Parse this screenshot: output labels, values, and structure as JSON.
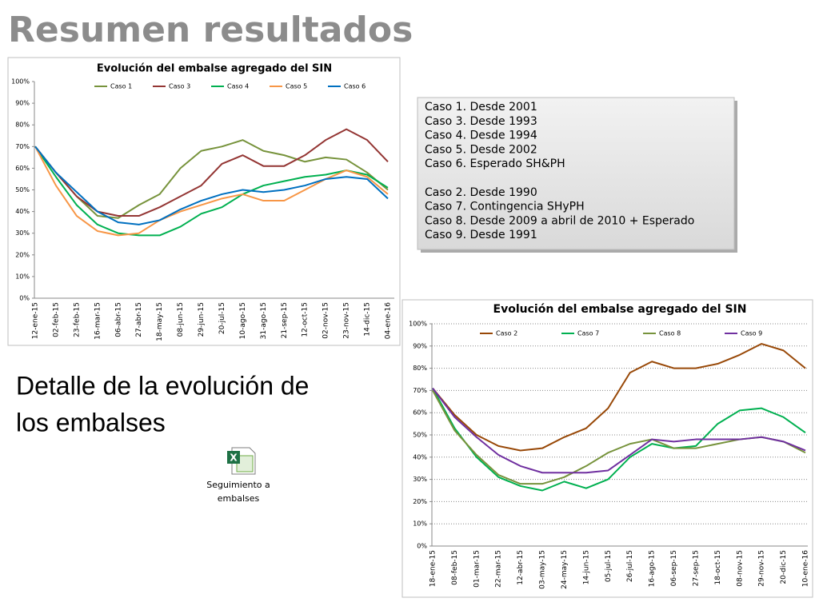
{
  "slide": {
    "title": "Resumen resultados",
    "cases": [
      [
        "Caso 1. Desde 2001",
        "Caso 3. Desde 1993",
        "Caso 4. Desde 1994",
        "Caso 5. Desde 2002",
        "Caso 6. Esperado SH&PH"
      ],
      [
        "Caso 2. Desde 1990",
        "Caso 7. Contingencia SHyPH",
        "Caso 8. Desde 2009 a abril de 2010 + Esperado",
        "Caso 9. Desde 1991"
      ]
    ],
    "detail": [
      "Detalle de la evolución de",
      "los embalses"
    ],
    "icon_label": [
      "Seguimiento a",
      "embalses"
    ]
  },
  "chart_data": [
    {
      "type": "line",
      "title": "Evolución del embalse agregado del SIN",
      "categories": [
        "12-ene-15",
        "02-feb-15",
        "23-feb-15",
        "16-mar-15",
        "06-abr-15",
        "27-abr-15",
        "18-may-15",
        "08-jun-15",
        "29-jun-15",
        "20-jul-15",
        "10-ago-15",
        "31-ago-15",
        "21-sep-15",
        "12-oct-15",
        "02-nov-15",
        "23-nov-15",
        "14-dic-15",
        "04-ene-16"
      ],
      "series": [
        {
          "name": "Caso 1",
          "color": "#77933c",
          "values": [
            70,
            58,
            47,
            38,
            37,
            43,
            48,
            60,
            68,
            70,
            73,
            68,
            66,
            63,
            65,
            64,
            58,
            50
          ]
        },
        {
          "name": "Caso 3",
          "color": "#943634",
          "values": [
            70,
            58,
            47,
            40,
            38,
            38,
            42,
            47,
            52,
            62,
            66,
            61,
            61,
            66,
            73,
            78,
            73,
            63
          ]
        },
        {
          "name": "Caso 4",
          "color": "#00b050",
          "values": [
            70,
            56,
            43,
            34,
            30,
            29,
            29,
            33,
            39,
            42,
            48,
            52,
            54,
            56,
            57,
            59,
            57,
            51
          ]
        },
        {
          "name": "Caso 5",
          "color": "#f79646",
          "values": [
            70,
            52,
            38,
            31,
            29,
            30,
            36,
            40,
            43,
            46,
            48,
            45,
            45,
            50,
            55,
            59,
            56,
            48
          ]
        },
        {
          "name": "Caso 6",
          "color": "#0070c0",
          "values": [
            70,
            58,
            49,
            40,
            35,
            34,
            36,
            41,
            45,
            48,
            50,
            49,
            50,
            52,
            55,
            56,
            55,
            46
          ]
        }
      ],
      "ylim": [
        0,
        100
      ],
      "yticks": [
        {
          "value": 0,
          "label": "0%"
        },
        {
          "value": 10,
          "label": "10%"
        },
        {
          "value": 20,
          "label": "20%"
        },
        {
          "value": 30,
          "label": "30%"
        },
        {
          "value": 40,
          "label": "40%"
        },
        {
          "value": 50,
          "label": "50%"
        },
        {
          "value": 60,
          "label": "60%"
        },
        {
          "value": 70,
          "label": "70%"
        },
        {
          "value": 80,
          "label": "80%"
        },
        {
          "value": 90,
          "label": "90%"
        },
        {
          "value": 100,
          "label": "100%"
        }
      ],
      "grid": false
    },
    {
      "type": "line",
      "title": "Evolución del embalse agregado del SIN",
      "categories": [
        "18-ene-15",
        "08-feb-15",
        "01-mar-15",
        "22-mar-15",
        "12-abr-15",
        "03-may-15",
        "24-may-15",
        "14-jun-15",
        "05-jul-15",
        "26-jul-15",
        "16-ago-15",
        "06-sep-15",
        "27-sep-15",
        "18-oct-15",
        "08-nov-15",
        "29-nov-15",
        "20-dic-15",
        "10-ene-16"
      ],
      "series": [
        {
          "name": "Caso 2",
          "color": "#984807",
          "values": [
            71,
            59,
            50,
            45,
            43,
            44,
            49,
            53,
            62,
            78,
            83,
            80,
            80,
            82,
            86,
            91,
            88,
            80
          ]
        },
        {
          "name": "Caso 7",
          "color": "#00b050",
          "values": [
            71,
            53,
            40,
            31,
            27,
            25,
            29,
            26,
            30,
            40,
            46,
            44,
            45,
            55,
            61,
            62,
            58,
            51
          ]
        },
        {
          "name": "Caso 8",
          "color": "#77933c",
          "values": [
            70,
            52,
            41,
            32,
            28,
            28,
            31,
            36,
            42,
            46,
            48,
            44,
            44,
            46,
            48,
            49,
            47,
            42
          ]
        },
        {
          "name": "Caso 9",
          "color": "#7030a0",
          "values": [
            71,
            58,
            49,
            41,
            36,
            33,
            33,
            33,
            34,
            41,
            48,
            47,
            48,
            48,
            48,
            49,
            47,
            43
          ]
        }
      ],
      "ylim": [
        0,
        100
      ],
      "yticks": [
        {
          "value": 0,
          "label": "0%"
        },
        {
          "value": 10,
          "label": "10%"
        },
        {
          "value": 20,
          "label": "20%"
        },
        {
          "value": 30,
          "label": "30%"
        },
        {
          "value": 40,
          "label": "40%"
        },
        {
          "value": 50,
          "label": "50%"
        },
        {
          "value": 60,
          "label": "60%"
        },
        {
          "value": 70,
          "label": "70%"
        },
        {
          "value": 80,
          "label": "80%"
        },
        {
          "value": 90,
          "label": "90%"
        },
        {
          "value": 100,
          "label": "100%"
        }
      ],
      "grid": true
    }
  ]
}
